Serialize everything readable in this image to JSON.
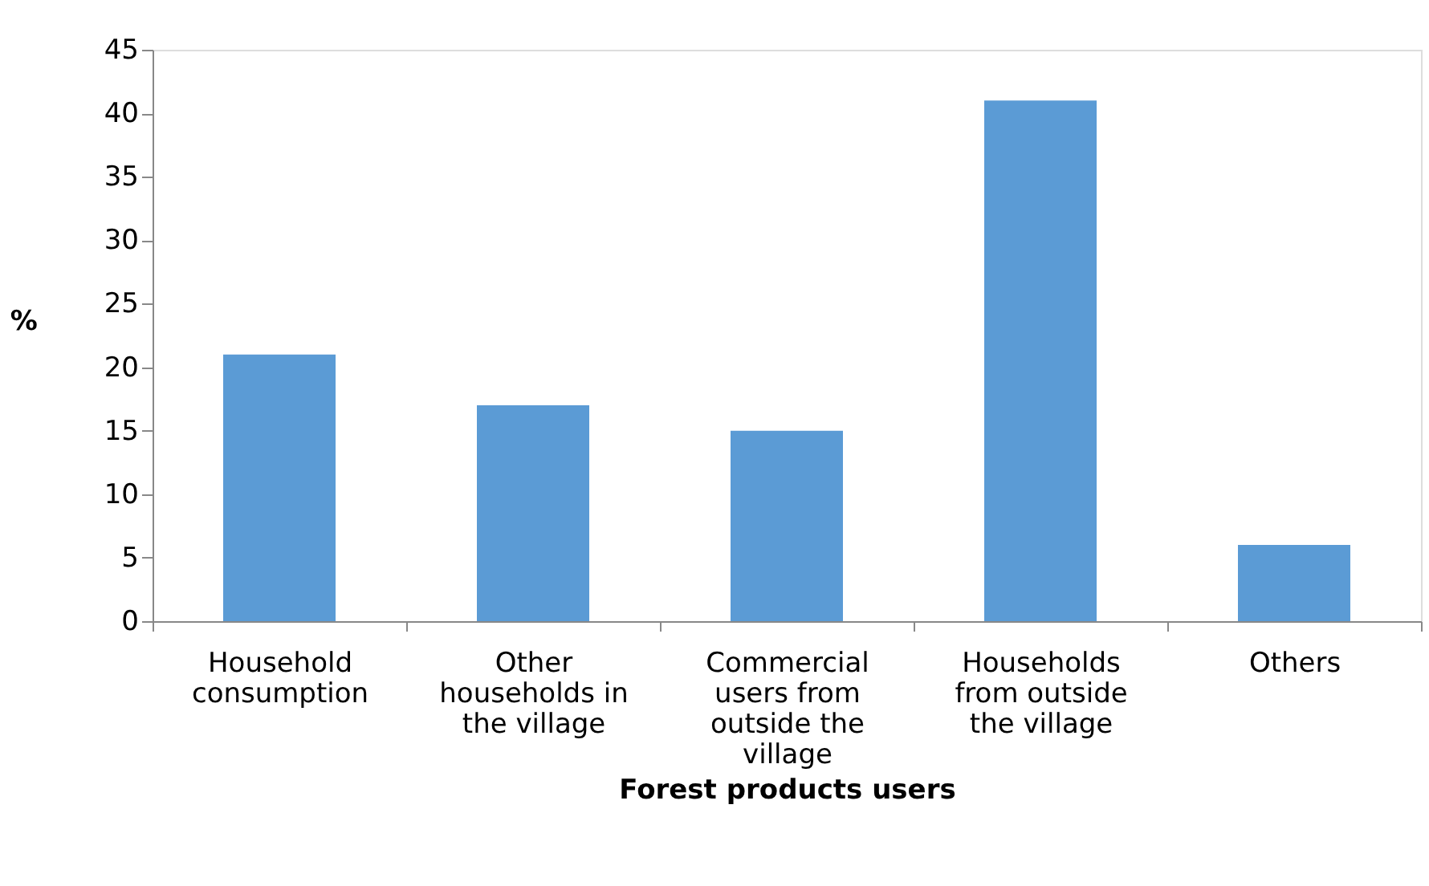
{
  "chart_data": {
    "type": "bar",
    "xlabel": "Forest products users",
    "ylabel": "%",
    "categories": [
      "Household consumption",
      "Other households in the village",
      "Commercial users from outside the village",
      "Households from outside the village",
      "Others"
    ],
    "values": [
      21,
      17,
      15,
      41,
      6
    ],
    "color": "#5b9bd5",
    "ylim": [
      0,
      45
    ],
    "yticks": [
      0,
      5,
      10,
      15,
      20,
      25,
      30,
      35,
      40,
      45
    ],
    "grid": false
  }
}
